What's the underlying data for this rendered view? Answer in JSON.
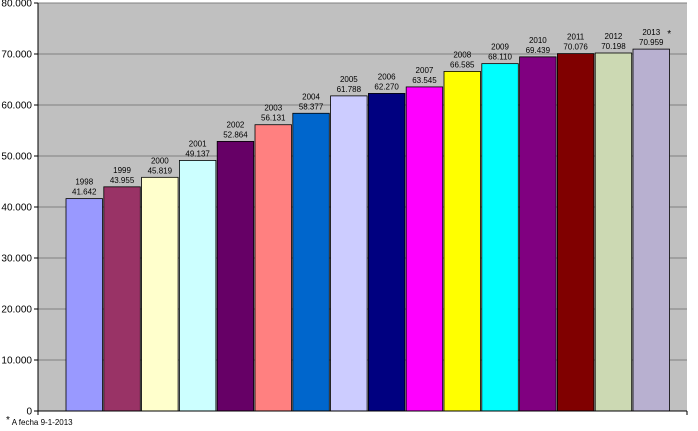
{
  "chart_data": {
    "type": "bar",
    "title": "",
    "xlabel": "",
    "ylabel": "",
    "ylim": [
      0,
      80000
    ],
    "yticks": [
      0,
      10000,
      20000,
      30000,
      40000,
      50000,
      60000,
      70000,
      80000
    ],
    "ytick_labels": [
      "0",
      "10.000",
      "20.000",
      "30.000",
      "40.000",
      "50.000",
      "60.000",
      "70.000",
      "80.000"
    ],
    "grid": true,
    "categories": [
      "1998",
      "1999",
      "2000",
      "2001",
      "2002",
      "2003",
      "2004",
      "2005",
      "2006",
      "2007",
      "2008",
      "2009",
      "2010",
      "2011",
      "2012",
      "2013"
    ],
    "values": [
      41642,
      43955,
      45819,
      49137,
      52864,
      56131,
      58377,
      61788,
      62270,
      63545,
      66585,
      68110,
      69439,
      70076,
      70198,
      70959
    ],
    "value_labels": [
      "41.642",
      "43.955",
      "45.819",
      "49.137",
      "52.864",
      "56.131",
      "58.377",
      "61.788",
      "62.270",
      "63.545",
      "66.585",
      "68.110",
      "69.439",
      "70.076",
      "70.198",
      "70.959"
    ],
    "annotated_category": "2013",
    "annotation_marker": "*",
    "colors": [
      "#9999ff",
      "#993366",
      "#ffffcc",
      "#ccffff",
      "#660066",
      "#ff8080",
      "#0066cc",
      "#ccccff",
      "#000080",
      "#ff00ff",
      "#ffff00",
      "#00ffff",
      "#800080",
      "#800000",
      "#ccd9b3",
      "#b8b0d0"
    ],
    "plot_background": "#c0c0c0",
    "gridline_color": "#808080"
  },
  "footnote": {
    "marker": "*",
    "text": " A fecha 9-1-2013"
  }
}
